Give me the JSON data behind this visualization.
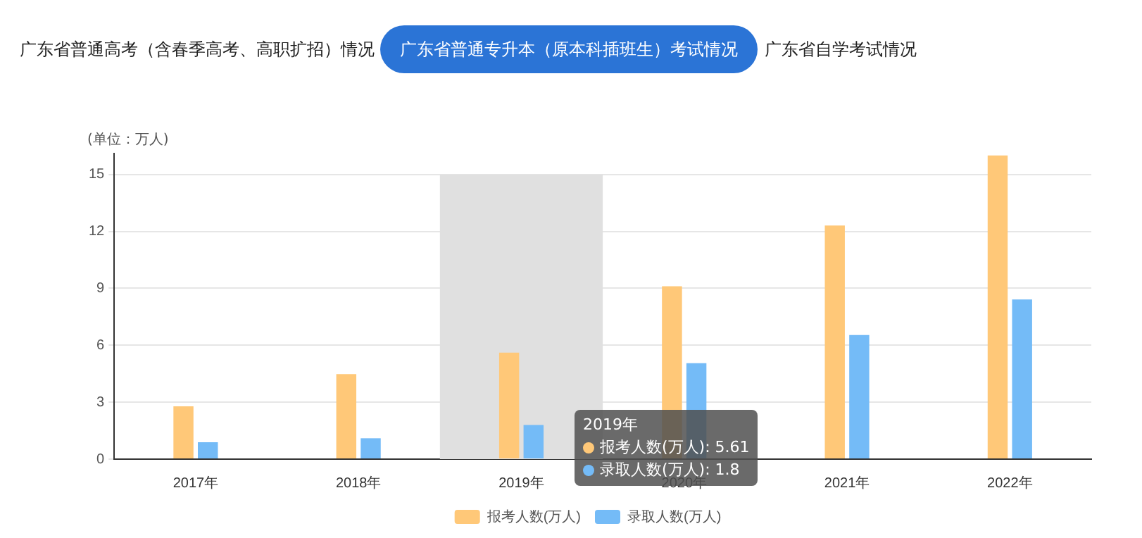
{
  "chart_data": {
    "type": "bar",
    "title": "广东省普通专升本（原本科插班生）考试情况",
    "annotations": [
      "广东省普通高考（含春季高考、高职扩招）情况",
      "广东省自学考试情况",
      "2019年",
      "报考人数(万人): 5.61",
      "录取人数(万人): 1.8"
    ],
    "ylabel": "(单位：万人)",
    "categories": [
      "2017年",
      "2018年",
      "2019年",
      "2020年",
      "2021年",
      "2022年"
    ],
    "series": [
      {
        "name": "报考人数(万人)",
        "color": "#ffc878",
        "values": [
          2.78,
          4.48,
          5.61,
          9.11,
          12.31,
          16.0
        ]
      },
      {
        "name": "录取人数(万人)",
        "color": "#74bbf7",
        "values": [
          0.89,
          1.1,
          1.8,
          5.05,
          6.54,
          8.41
        ]
      }
    ],
    "bands": [
      {
        "axis": "x",
        "from": "2019年",
        "to": "2019年",
        "color": "#e0e0e0"
      }
    ],
    "ylim": [
      0,
      16.1
    ],
    "yticks": [
      0,
      3,
      6,
      9,
      12,
      15
    ],
    "grid": "y",
    "legend": "bottom"
  }
}
